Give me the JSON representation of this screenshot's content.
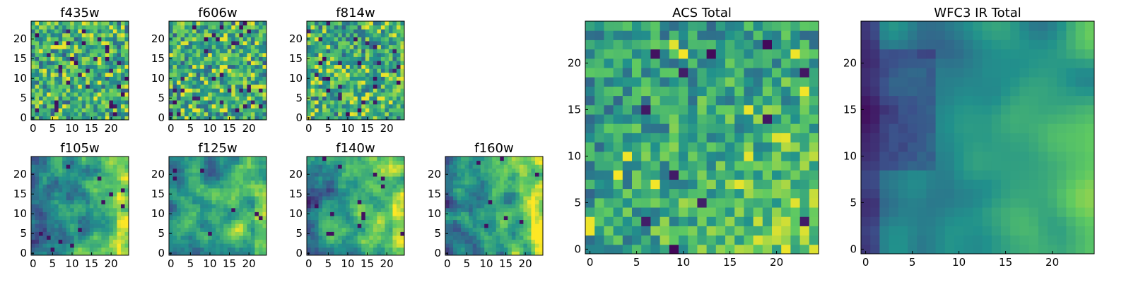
{
  "figure": {
    "background": "#ffffff",
    "colormap": "viridis",
    "colormap_stops": [
      "#440154",
      "#3b528b",
      "#21918c",
      "#5ec962",
      "#fde725"
    ]
  },
  "chart_data": [
    {
      "type": "heatmap",
      "title": "f435w",
      "grid_size": [
        25,
        25
      ],
      "xlim": [
        0,
        24
      ],
      "ylim": [
        0,
        24
      ],
      "xticks": [
        "0",
        "5",
        "10",
        "15",
        "20"
      ],
      "yticks": [
        "0",
        "5",
        "10",
        "15",
        "20"
      ],
      "texture": "fine noise",
      "seed": 11
    },
    {
      "type": "heatmap",
      "title": "f606w",
      "grid_size": [
        25,
        25
      ],
      "xlim": [
        0,
        24
      ],
      "ylim": [
        0,
        24
      ],
      "xticks": [
        "0",
        "5",
        "10",
        "15",
        "20"
      ],
      "yticks": [
        "0",
        "5",
        "10",
        "15",
        "20"
      ],
      "texture": "fine noise",
      "seed": 23
    },
    {
      "type": "heatmap",
      "title": "f814w",
      "grid_size": [
        25,
        25
      ],
      "xlim": [
        0,
        24
      ],
      "ylim": [
        0,
        24
      ],
      "xticks": [
        "0",
        "5",
        "10",
        "15",
        "20"
      ],
      "yticks": [
        "0",
        "5",
        "10",
        "15",
        "20"
      ],
      "texture": "fine noise",
      "seed": 37
    },
    {
      "type": "heatmap",
      "title": "f105w",
      "grid_size": [
        25,
        25
      ],
      "xlim": [
        0,
        24
      ],
      "ylim": [
        0,
        24
      ],
      "xticks": [
        "0",
        "5",
        "10",
        "15",
        "20"
      ],
      "yticks": [
        "0",
        "5",
        "10",
        "15",
        "20"
      ],
      "texture": "smooth, brighter at right edge",
      "seed": 41
    },
    {
      "type": "heatmap",
      "title": "f125w",
      "grid_size": [
        25,
        25
      ],
      "xlim": [
        0,
        24
      ],
      "ylim": [
        0,
        24
      ],
      "xticks": [
        "0",
        "5",
        "10",
        "15",
        "20"
      ],
      "yticks": [
        "0",
        "5",
        "10",
        "15",
        "20"
      ],
      "texture": "smooth, brighter at right edge",
      "seed": 53
    },
    {
      "type": "heatmap",
      "title": "f140w",
      "grid_size": [
        25,
        25
      ],
      "xlim": [
        0,
        24
      ],
      "ylim": [
        0,
        24
      ],
      "xticks": [
        "0",
        "5",
        "10",
        "15",
        "20"
      ],
      "yticks": [
        "0",
        "5",
        "10",
        "15",
        "20"
      ],
      "texture": "smooth, brighter at right edge",
      "seed": 67
    },
    {
      "type": "heatmap",
      "title": "f160w",
      "grid_size": [
        25,
        25
      ],
      "xlim": [
        0,
        24
      ],
      "ylim": [
        0,
        24
      ],
      "xticks": [
        "0",
        "5",
        "10",
        "15",
        "20"
      ],
      "yticks": [
        "0",
        "5",
        "10",
        "15",
        "20"
      ],
      "texture": "smooth, brighter at right edge",
      "seed": 79
    },
    {
      "type": "heatmap",
      "title": "ACS Total",
      "grid_size": [
        25,
        25
      ],
      "xlim": [
        0,
        24
      ],
      "ylim": [
        0,
        24
      ],
      "xticks": [
        "0",
        "5",
        "10",
        "15",
        "20"
      ],
      "yticks": [
        "0",
        "5",
        "10",
        "15",
        "20"
      ],
      "texture": "medium noise, brighter bottom-right",
      "seed": 97
    },
    {
      "type": "heatmap",
      "title": "WFC3 IR Total",
      "grid_size": [
        25,
        25
      ],
      "xlim": [
        0,
        24
      ],
      "ylim": [
        0,
        24
      ],
      "xticks": [
        "0",
        "5",
        "10",
        "15",
        "20"
      ],
      "yticks": [
        "0",
        "5",
        "10",
        "15",
        "20"
      ],
      "texture": "smooth, dark left edge, bright bottom-right",
      "seed": 113
    }
  ]
}
